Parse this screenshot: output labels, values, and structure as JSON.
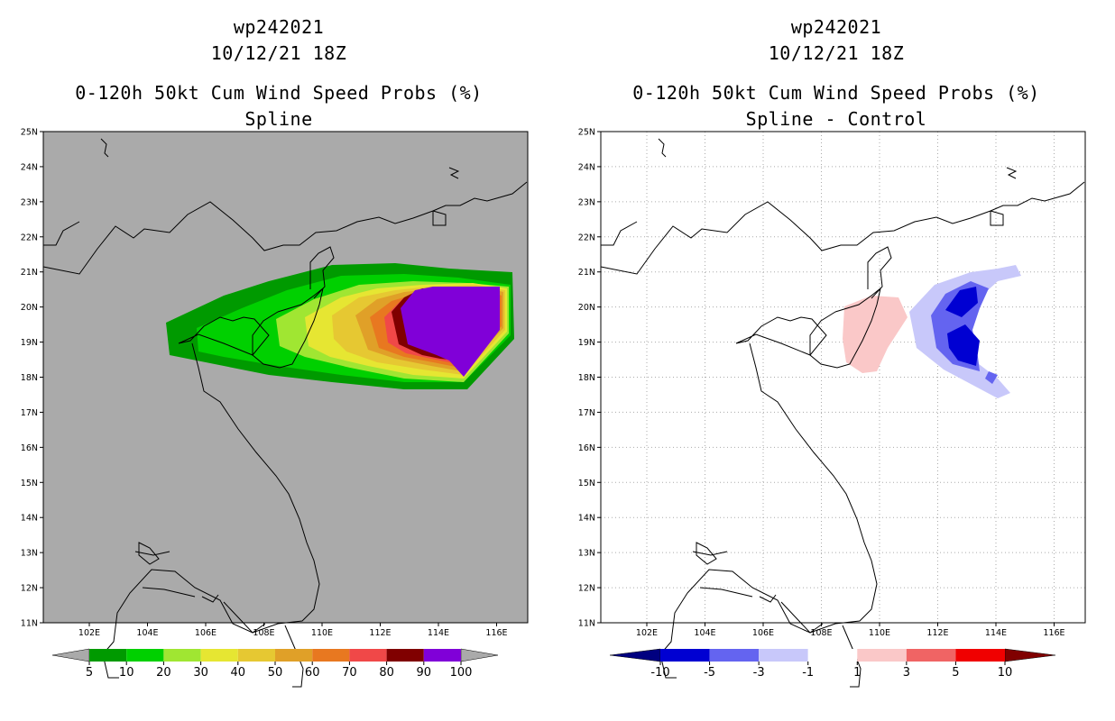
{
  "left_panel": {
    "title_line1": "wp242021",
    "title_line2": "10/12/21 18Z",
    "title_line3": "0-120h 50kt Cum Wind Speed Probs (%)",
    "title_line4": "Spline",
    "background_color": "#aaaaaa",
    "colorbar": {
      "labels": [
        "5",
        "10",
        "20",
        "30",
        "40",
        "50",
        "60",
        "70",
        "80",
        "90",
        "100"
      ],
      "colors": [
        "#009a00",
        "#00d000",
        "#a0e632",
        "#e6e632",
        "#e6c832",
        "#e0a028",
        "#e87820",
        "#f04848",
        "#800000",
        "#8000d8"
      ],
      "end_arrow_color": "#aaaaaa"
    }
  },
  "right_panel": {
    "title_line1": "wp242021",
    "title_line2": "10/12/21 18Z",
    "title_line3": "0-120h 50kt Cum Wind Speed Probs (%)",
    "title_line4": "Spline - Control",
    "background_color": "#ffffff",
    "colorbar": {
      "labels": [
        "-10",
        "-5",
        "-3",
        "-1",
        "1",
        "3",
        "5",
        "10"
      ],
      "colors": [
        "#0000d2",
        "#6464f0",
        "#c8c8fa",
        "#ffffff",
        "#fac8c8",
        "#f06464",
        "#f00000"
      ],
      "left_arrow_color": "#000080",
      "right_arrow_color": "#800000"
    }
  },
  "map": {
    "lat_labels": [
      "25N",
      "24N",
      "23N",
      "22N",
      "21N",
      "20N",
      "19N",
      "18N",
      "17N",
      "16N",
      "15N",
      "14N",
      "13N",
      "12N",
      "11N"
    ],
    "lon_labels": [
      "102E",
      "104E",
      "106E",
      "108E",
      "110E",
      "112E",
      "114E",
      "116E"
    ]
  }
}
